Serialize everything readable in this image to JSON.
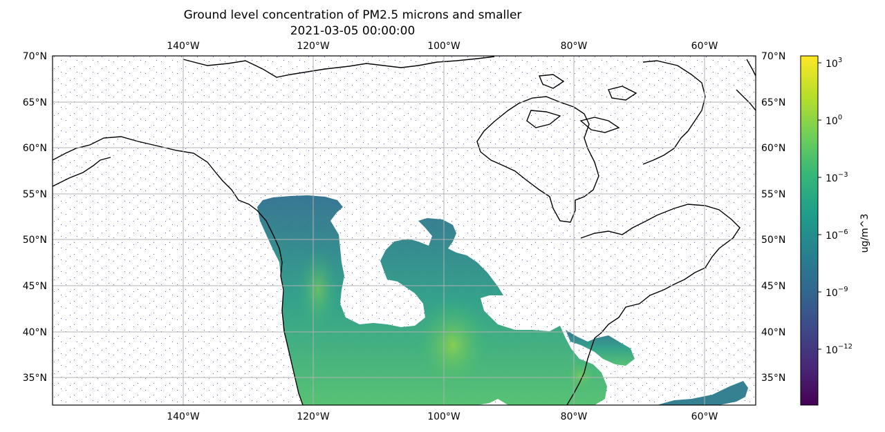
{
  "title": "Ground level concentration of PM2.5 microns and smaller",
  "subtitle": "2021-03-05 00:00:00",
  "map": {
    "lon_ticks": [
      "140°W",
      "120°W",
      "100°W",
      "80°W",
      "60°W"
    ],
    "lon_values": [
      -140,
      -120,
      -100,
      -80,
      -60
    ],
    "lat_ticks": [
      "70°N",
      "65°N",
      "60°N",
      "55°N",
      "50°N",
      "45°N",
      "40°N",
      "35°N"
    ],
    "lat_values": [
      70,
      65,
      60,
      55,
      50,
      45,
      40,
      35
    ],
    "extent": {
      "lon_min": -160,
      "lon_max": -52,
      "lat_min": 32,
      "lat_max": 70
    },
    "gridlines": true
  },
  "colorbar": {
    "label": "ug/m^3",
    "colormap": "viridis",
    "scale": "log",
    "ticks": [
      {
        "base": "10",
        "exp": "3",
        "value": 1000
      },
      {
        "base": "10",
        "exp": "0",
        "value": 1
      },
      {
        "base": "10",
        "exp": "−3",
        "value": 0.001
      },
      {
        "base": "10",
        "exp": "−6",
        "value": 1e-06
      },
      {
        "base": "10",
        "exp": "−9",
        "value": 1e-09
      },
      {
        "base": "10",
        "exp": "−12",
        "value": 1e-12
      }
    ],
    "colors": [
      "#440154",
      "#482878",
      "#3e4989",
      "#31688e",
      "#26828e",
      "#1f9e89",
      "#35b779",
      "#6ece58",
      "#b5de2b",
      "#fde725"
    ]
  }
}
